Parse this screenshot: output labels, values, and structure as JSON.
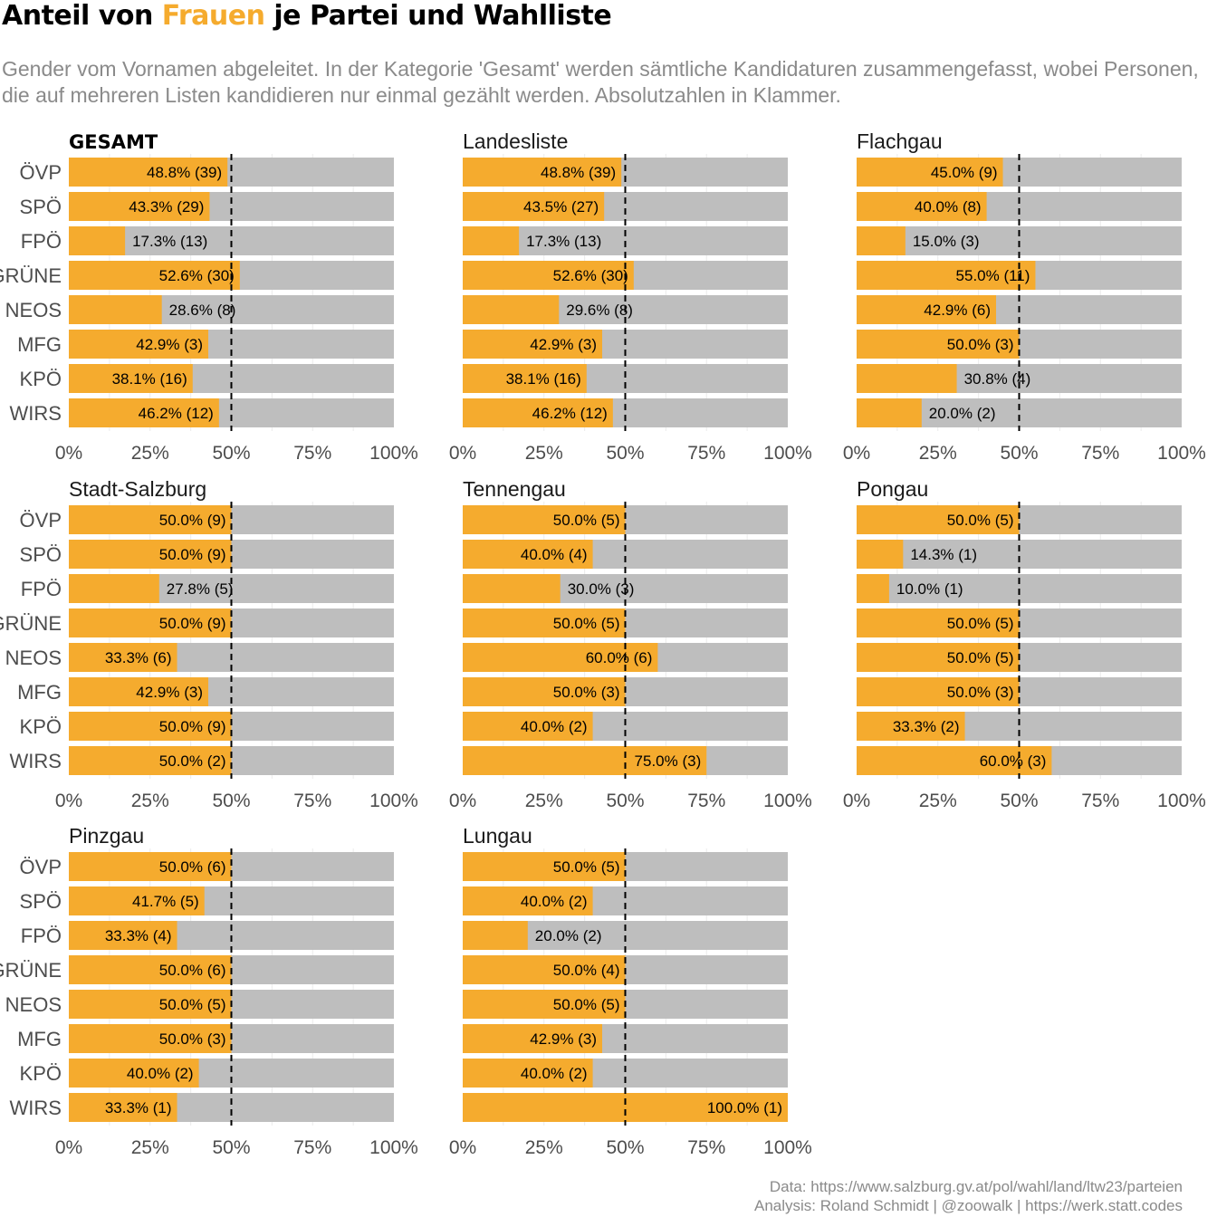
{
  "header": {
    "title_before": "Anteil von ",
    "title_highlight": "Frauen",
    "title_after": " je Partei und Wahlliste",
    "subtitle": "Gender vom Vornamen abgeleitet. In der Kategorie 'Gesamt' werden sämtliche Kandidaturen zusammengefasst, wobei Personen, die auf mehreren Listen kandidieren nur einmal gezählt werden. Absolutzahlen in Klammer."
  },
  "caption": {
    "line1": "Data: https://www.salzburg.gv.at/pol/wahl/land/ltw23/parteien",
    "line2": "Analysis: Roland Schmidt | @zoowalk | https://werk.statt.codes"
  },
  "colors": {
    "women": "#f5ab2e",
    "rest": "#bebebe",
    "reference_line": "#000000"
  },
  "chart_data": {
    "type": "bar",
    "orientation": "horizontal",
    "stacked_to_100": true,
    "categories": [
      "ÖVP",
      "SPÖ",
      "FPÖ",
      "GRÜNE",
      "NEOS",
      "MFG",
      "KPÖ",
      "WIRS"
    ],
    "xlim": [
      0,
      100
    ],
    "x_ticks": [
      "0%",
      "25%",
      "50%",
      "75%",
      "100%"
    ],
    "reference_line": 50,
    "panels": [
      {
        "name": "GESAMT",
        "bold": true,
        "pct": [
          48.8,
          43.3,
          17.3,
          52.6,
          28.6,
          42.9,
          38.1,
          46.2
        ],
        "n": [
          39,
          29,
          13,
          30,
          8,
          3,
          16,
          12
        ]
      },
      {
        "name": "Landesliste",
        "pct": [
          48.8,
          43.5,
          17.3,
          52.6,
          29.6,
          42.9,
          38.1,
          46.2
        ],
        "n": [
          39,
          27,
          13,
          30,
          8,
          3,
          16,
          12
        ]
      },
      {
        "name": "Flachgau",
        "pct": [
          45.0,
          40.0,
          15.0,
          55.0,
          42.9,
          50.0,
          30.8,
          20.0
        ],
        "n": [
          9,
          8,
          3,
          11,
          6,
          3,
          4,
          2
        ]
      },
      {
        "name": "Stadt-Salzburg",
        "pct": [
          50.0,
          50.0,
          27.8,
          50.0,
          33.3,
          42.9,
          50.0,
          50.0
        ],
        "n": [
          9,
          9,
          5,
          9,
          6,
          3,
          9,
          2
        ]
      },
      {
        "name": "Tennengau",
        "pct": [
          50.0,
          40.0,
          30.0,
          50.0,
          60.0,
          50.0,
          40.0,
          75.0
        ],
        "n": [
          5,
          4,
          3,
          5,
          6,
          3,
          2,
          3
        ]
      },
      {
        "name": "Pongau",
        "pct": [
          50.0,
          14.3,
          10.0,
          50.0,
          50.0,
          50.0,
          33.3,
          60.0
        ],
        "n": [
          5,
          1,
          1,
          5,
          5,
          3,
          2,
          3
        ]
      },
      {
        "name": "Pinzgau",
        "pct": [
          50.0,
          41.7,
          33.3,
          50.0,
          50.0,
          50.0,
          40.0,
          33.3
        ],
        "n": [
          6,
          5,
          4,
          6,
          5,
          3,
          2,
          1
        ]
      },
      {
        "name": "Lungau",
        "pct": [
          50.0,
          40.0,
          20.0,
          50.0,
          50.0,
          42.9,
          40.0,
          100.0
        ],
        "n": [
          5,
          2,
          2,
          4,
          5,
          3,
          2,
          1
        ]
      }
    ]
  }
}
